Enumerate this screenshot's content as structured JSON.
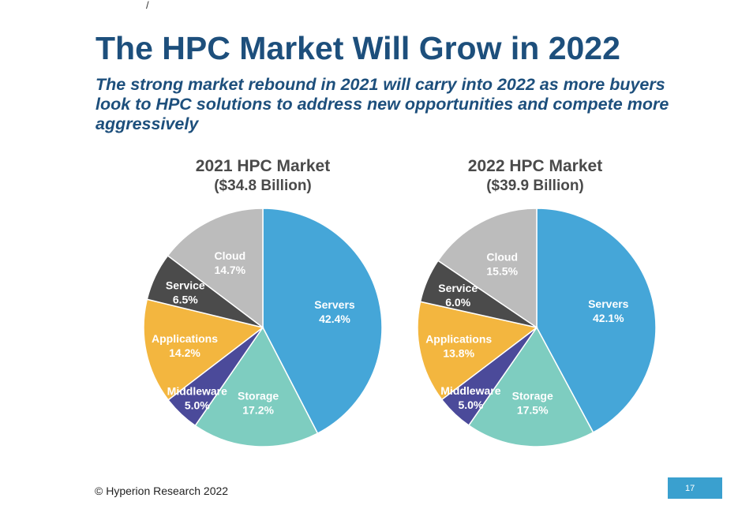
{
  "corner_mark": "/",
  "title": "The HPC Market Will Grow in 2022",
  "subtitle": "The strong market rebound in 2021 will carry into 2022 as more buyers look to HPC solutions to address new opportunities and compete more aggressively",
  "footer": "© Hyperion Research 2022",
  "page_number": "17",
  "colors": {
    "Servers": "#45a6d8",
    "Storage": "#7ecdc0",
    "Middleware": "#4b4a9a",
    "Applications": "#f3b63f",
    "Service": "#4b4b4b",
    "Cloud": "#bcbcbc"
  },
  "chart_data": [
    {
      "type": "pie",
      "title": "2021 HPC Market",
      "subtitle": "($34.8 Billion)",
      "slices": [
        {
          "label": "Servers",
          "value": 42.4,
          "text": "42.4%"
        },
        {
          "label": "Storage",
          "value": 17.2,
          "text": "17.2%"
        },
        {
          "label": "Middleware",
          "value": 5.0,
          "text": "5.0%"
        },
        {
          "label": "Applications",
          "value": 14.2,
          "text": "14.2%"
        },
        {
          "label": "Service",
          "value": 6.5,
          "text": "6.5%"
        },
        {
          "label": "Cloud",
          "value": 14.7,
          "text": "14.7%"
        }
      ]
    },
    {
      "type": "pie",
      "title": "2022 HPC Market",
      "subtitle": "($39.9 Billion)",
      "slices": [
        {
          "label": "Servers",
          "value": 42.1,
          "text": "42.1%"
        },
        {
          "label": "Storage",
          "value": 17.5,
          "text": "17.5%"
        },
        {
          "label": "Middleware",
          "value": 5.0,
          "text": "5.0%"
        },
        {
          "label": "Applications",
          "value": 13.8,
          "text": "13.8%"
        },
        {
          "label": "Service",
          "value": 6.0,
          "text": "6.0%"
        },
        {
          "label": "Cloud",
          "value": 15.5,
          "text": "15.5%"
        }
      ]
    }
  ]
}
